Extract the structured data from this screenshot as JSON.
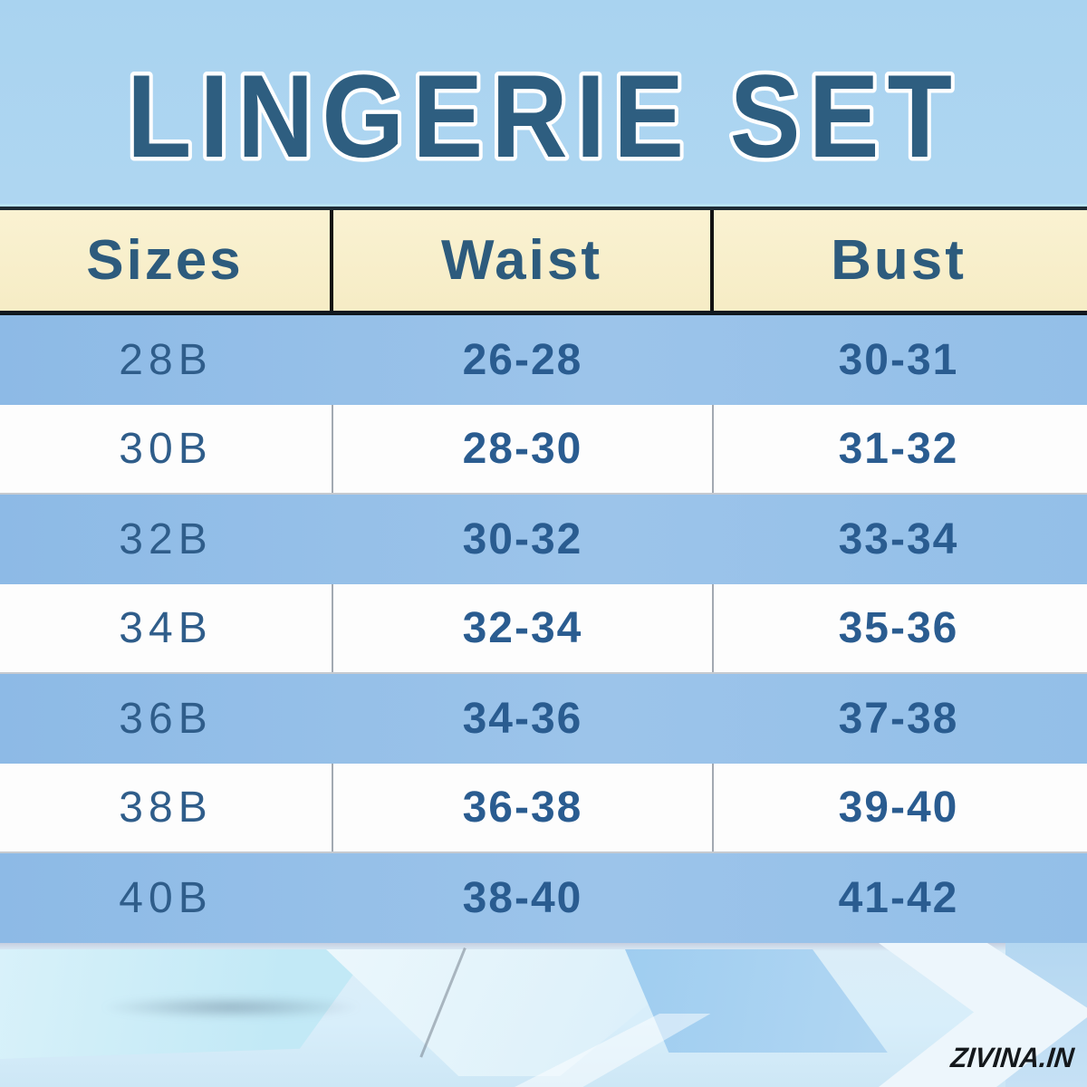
{
  "title": "LINGERIE SET",
  "watermark": "ZIVINA.IN",
  "table": {
    "headers": [
      "Sizes",
      "Waist",
      "Bust"
    ],
    "rows": [
      [
        "28B",
        "26-28",
        "30-31"
      ],
      [
        "30B",
        "28-30",
        "31-32"
      ],
      [
        "32B",
        "30-32",
        "33-34"
      ],
      [
        "34B",
        "32-34",
        "35-36"
      ],
      [
        "36B",
        "34-36",
        "37-38"
      ],
      [
        "38B",
        "36-38",
        "39-40"
      ],
      [
        "40B",
        "38-40",
        "41-42"
      ]
    ]
  },
  "chart_data": {
    "type": "table",
    "title": "LINGERIE SET",
    "columns": [
      "Sizes",
      "Waist",
      "Bust"
    ],
    "rows": [
      {
        "size": "28B",
        "waist": "26-28",
        "bust": "30-31"
      },
      {
        "size": "30B",
        "waist": "28-30",
        "bust": "31-32"
      },
      {
        "size": "32B",
        "waist": "30-32",
        "bust": "33-34"
      },
      {
        "size": "34B",
        "waist": "32-34",
        "bust": "35-36"
      },
      {
        "size": "36B",
        "waist": "34-36",
        "bust": "37-38"
      },
      {
        "size": "38B",
        "waist": "36-38",
        "bust": "39-40"
      },
      {
        "size": "40B",
        "waist": "38-40",
        "bust": "41-42"
      }
    ],
    "layout_hints": "cream header row, alternating light-blue/white body rows, full-width table"
  },
  "colors": {
    "title_text": "#2e5e80",
    "title_outline": "#ffffff",
    "header_bg": "#f7eec9",
    "header_text": "#2d5b7d",
    "row_blue_bg": "#93bfe8",
    "row_white_bg": "#fdfdfd",
    "cell_text": "#2a5c90",
    "divider_dark": "#121212",
    "background_top": "#a9d3f0",
    "background_bottom": "#cfe9f7",
    "watermark_text": "#14181c"
  }
}
